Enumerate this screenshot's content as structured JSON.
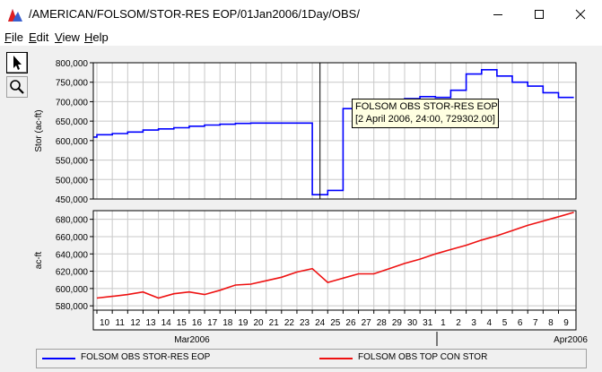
{
  "window": {
    "title": "/AMERICAN/FOLSOM/STOR-RES EOP/01Jan2006/1Day/OBS/"
  },
  "menu": [
    {
      "label": "File",
      "mnemonic": "F",
      "rest": "ile"
    },
    {
      "label": "Edit",
      "mnemonic": "E",
      "rest": "dit"
    },
    {
      "label": "View",
      "mnemonic": "V",
      "rest": "iew"
    },
    {
      "label": "Help",
      "mnemonic": "H",
      "rest": "elp"
    }
  ],
  "tools": [
    {
      "icon": "arrow-pointer-icon",
      "active": true
    },
    {
      "icon": "magnifier-icon",
      "active": false
    }
  ],
  "tooltip": {
    "line1": "FOLSOM OBS STOR-RES EOP",
    "line2": "[2 April 2006, 24:00, 729302.00]"
  },
  "legend": {
    "series1": "FOLSOM OBS STOR-RES EOP",
    "series2": "FOLSOM OBS TOP CON STOR"
  },
  "colors": {
    "series1": "#0000ff",
    "series2": "#ee1111",
    "grid": "#c8c8c8"
  },
  "chart_data": [
    {
      "type": "line",
      "ylabel": "Stor (ac-ft)",
      "ylim": [
        450000,
        800000
      ],
      "yticks": [
        "800,000",
        "750,000",
        "700,000",
        "650,000",
        "600,000",
        "550,000",
        "500,000",
        "450,000"
      ],
      "ytick_values": [
        800000,
        750000,
        700000,
        650000,
        600000,
        550000,
        500000,
        450000
      ],
      "series": [
        {
          "name": "FOLSOM OBS STOR-RES EOP",
          "step": true,
          "x": [
            "2006-03-09",
            "2006-03-10",
            "2006-03-11",
            "2006-03-12",
            "2006-03-13",
            "2006-03-14",
            "2006-03-15",
            "2006-03-16",
            "2006-03-17",
            "2006-03-18",
            "2006-03-19",
            "2006-03-20",
            "2006-03-21",
            "2006-03-22",
            "2006-03-23",
            "2006-03-24",
            "2006-03-25",
            "2006-03-26",
            "2006-03-27",
            "2006-03-28",
            "2006-03-29",
            "2006-03-30",
            "2006-03-31",
            "2006-04-01",
            "2006-04-02",
            "2006-04-03",
            "2006-04-04",
            "2006-04-05",
            "2006-04-06",
            "2006-04-07",
            "2006-04-08",
            "2006-04-09"
          ],
          "y": [
            609000,
            615000,
            618000,
            622000,
            627000,
            630000,
            633000,
            637000,
            640000,
            642000,
            644000,
            645000,
            645000,
            645000,
            645000,
            461000,
            472000,
            682000,
            690000,
            695000,
            703000,
            708000,
            713000,
            711000,
            729302,
            771000,
            782000,
            766000,
            750000,
            740000,
            723000,
            711000
          ]
        }
      ],
      "cursor_x": "2006-03-25"
    },
    {
      "type": "line",
      "ylabel": "ac-ft",
      "ylim": [
        575000,
        690000
      ],
      "yticks": [
        "680,000",
        "660,000",
        "640,000",
        "620,000",
        "600,000",
        "580,000"
      ],
      "ytick_values": [
        680000,
        660000,
        640000,
        620000,
        600000,
        580000
      ],
      "series": [
        {
          "name": "FOLSOM OBS TOP CON STOR",
          "step": false,
          "x": [
            "2006-03-10",
            "2006-03-11",
            "2006-03-12",
            "2006-03-13",
            "2006-03-14",
            "2006-03-15",
            "2006-03-16",
            "2006-03-17",
            "2006-03-18",
            "2006-03-19",
            "2006-03-20",
            "2006-03-21",
            "2006-03-22",
            "2006-03-23",
            "2006-03-24",
            "2006-03-25",
            "2006-03-26",
            "2006-03-27",
            "2006-03-28",
            "2006-03-29",
            "2006-03-30",
            "2006-03-31",
            "2006-04-01",
            "2006-04-02",
            "2006-04-03",
            "2006-04-04",
            "2006-04-05",
            "2006-04-06",
            "2006-04-07",
            "2006-04-08",
            "2006-04-09",
            "2006-04-10"
          ],
          "y": [
            589000,
            591000,
            593000,
            596000,
            589000,
            594000,
            596000,
            593000,
            598000,
            604000,
            605000,
            609000,
            613000,
            619000,
            623000,
            607000,
            612000,
            617000,
            617000,
            623000,
            629000,
            634000,
            640000,
            645000,
            650000,
            656000,
            661000,
            667000,
            673000,
            678000,
            683000,
            688000
          ]
        }
      ]
    }
  ],
  "xaxis": {
    "days": [
      "10",
      "11",
      "12",
      "13",
      "14",
      "15",
      "16",
      "17",
      "18",
      "19",
      "20",
      "21",
      "22",
      "23",
      "24",
      "25",
      "26",
      "27",
      "28",
      "29",
      "30",
      "31",
      "1",
      "2",
      "3",
      "4",
      "5",
      "6",
      "7",
      "8",
      "9"
    ],
    "month_labels": [
      {
        "label": "Mar2006"
      },
      {
        "label": "Apr2006"
      }
    ]
  }
}
